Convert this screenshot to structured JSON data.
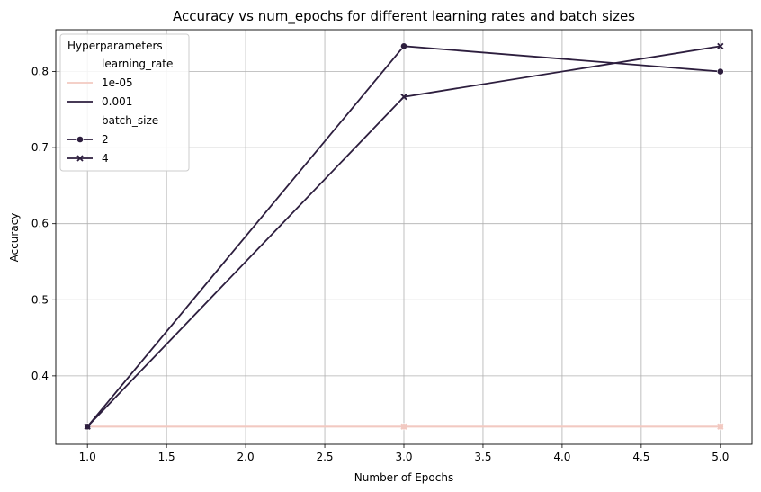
{
  "chart_data": {
    "type": "line",
    "title": "Accuracy vs num_epochs for different learning rates and batch sizes",
    "xlabel": "Number of Epochs",
    "ylabel": "Accuracy",
    "xlim": [
      0.8,
      5.2
    ],
    "ylim": [
      0.31,
      0.855
    ],
    "xticks": [
      1.0,
      1.5,
      2.0,
      2.5,
      3.0,
      3.5,
      4.0,
      4.5,
      5.0
    ],
    "xtick_labels": [
      "1.0",
      "1.5",
      "2.0",
      "2.5",
      "3.0",
      "3.5",
      "4.0",
      "4.5",
      "5.0"
    ],
    "yticks": [
      0.4,
      0.5,
      0.6,
      0.7,
      0.8
    ],
    "ytick_labels": [
      "0.4",
      "0.5",
      "0.6",
      "0.7",
      "0.8"
    ],
    "grid": true,
    "legend_position": "top-left",
    "legend": {
      "title": "Hyperparameters",
      "groups": [
        {
          "header": "learning_rate",
          "entries": [
            {
              "label": "1e-05",
              "color": "#f2c9c1",
              "marker": "none"
            },
            {
              "label": "0.001",
              "color": "#2d1e3e",
              "marker": "none"
            }
          ]
        },
        {
          "header": "batch_size",
          "entries": [
            {
              "label": "2",
              "color": "#2d1e3e",
              "marker": "circle"
            },
            {
              "label": "4",
              "color": "#2d1e3e",
              "marker": "x"
            }
          ]
        }
      ]
    },
    "series": [
      {
        "learning_rate": "1e-05",
        "batch_size": "2",
        "color": "#f2c9c1",
        "marker": "circle",
        "x": [
          1,
          3,
          5
        ],
        "y": [
          0.3333,
          0.3333,
          0.3333
        ]
      },
      {
        "learning_rate": "1e-05",
        "batch_size": "4",
        "color": "#f2c9c1",
        "marker": "x",
        "x": [
          1,
          3,
          5
        ],
        "y": [
          0.3333,
          0.3333,
          0.3333
        ]
      },
      {
        "learning_rate": "0.001",
        "batch_size": "2",
        "color": "#2d1e3e",
        "marker": "circle",
        "x": [
          1,
          3,
          5
        ],
        "y": [
          0.3333,
          0.8333,
          0.8
        ]
      },
      {
        "learning_rate": "0.001",
        "batch_size": "4",
        "color": "#2d1e3e",
        "marker": "x",
        "x": [
          1,
          3,
          5
        ],
        "y": [
          0.3333,
          0.7667,
          0.8333
        ]
      }
    ]
  }
}
